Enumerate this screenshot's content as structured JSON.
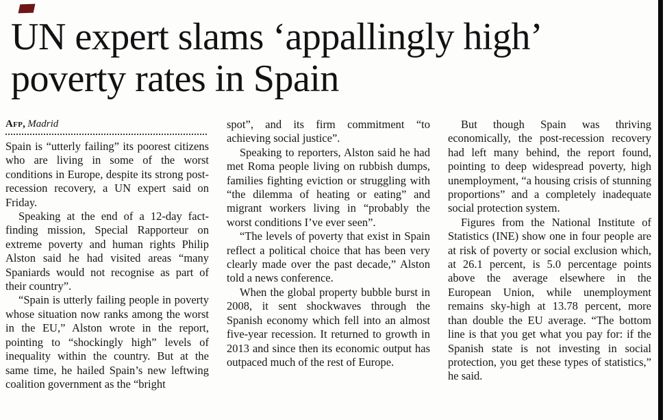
{
  "article": {
    "corner_mark": "",
    "headline": {
      "line1": "UN expert slams ‘appallingly high’",
      "line2": "poverty rates in Spain"
    },
    "byline": {
      "agency": "Afp,",
      "location": "Madrid"
    },
    "columns": [
      {
        "paragraphs": [
          {
            "indent": false,
            "text": "Spain is “utterly failing” its poorest citizens who are living in some of the worst conditions in Europe, despite its strong post-recession recovery, a UN expert said on Friday."
          },
          {
            "indent": true,
            "text": "Speaking at the end of a 12-day fact-finding mission, Special Rapporteur on extreme poverty and human rights Philip Alston said he had visited areas “many Spaniards would not recognise as part of their country”."
          },
          {
            "indent": true,
            "text": "“Spain is utterly failing people in poverty whose situation now ranks among the worst in the EU,” Alston wrote in the report, pointing to “shockingly high” levels of inequality within the country. But at the same time, he hailed Spain’s new leftwing coalition government as the “bright"
          }
        ]
      },
      {
        "paragraphs": [
          {
            "indent": false,
            "text": "spot”, and its firm commitment “to achieving social justice”."
          },
          {
            "indent": true,
            "text": "Speaking to reporters, Alston said he had met Roma people living on rubbish dumps, families fighting eviction or struggling with “the dilemma of heating or eating” and migrant workers living in “probably the worst conditions I’ve ever seen”."
          },
          {
            "indent": true,
            "text": "“The levels of poverty that exist in Spain reflect a political choice that has been very clearly made over the past decade,” Alston told a news conference."
          },
          {
            "indent": true,
            "text": "When the global property bubble burst in 2008, it sent shockwaves through the Spanish economy which fell into an almost five-year recession. It returned to growth in 2013 and since then its economic output has outpaced much of the rest of Europe."
          }
        ]
      },
      {
        "paragraphs": [
          {
            "indent": true,
            "text": "But though Spain was thriving economically, the post-recession recovery had left many behind, the report found, pointing to deep widespread poverty, high unemployment, “a housing crisis of stunning proportions” and a completely inadequate social protection system."
          },
          {
            "indent": true,
            "text": "Figures from the National Institute of Statistics (INE) show one in four people are at risk of poverty or social exclusion which, at 26.1 percent, is 5.0 percentage points above the average elsewhere in the European Union, while unemployment remains sky-high at 13.78 percent, more than double the EU average. “The bottom line is that you get what you pay for: if the Spanish state is not investing in social protection, you get these types of statistics,” he said."
          }
        ]
      }
    ]
  }
}
